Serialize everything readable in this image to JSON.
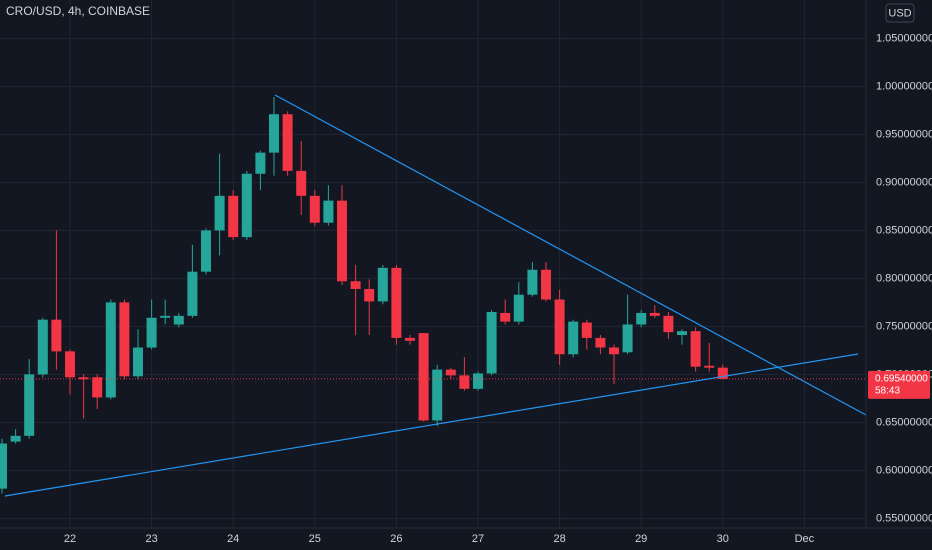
{
  "chart_data": {
    "type": "candlestick",
    "title": "CRO/USD, 4h, COINBASE",
    "currency_button": "USD",
    "up_color": "#26a69a",
    "down_color": "#f23645",
    "grid": true,
    "categories": [
      null,
      null,
      null,
      null,
      null,
      "22",
      null,
      null,
      null,
      null,
      null,
      "23",
      null,
      null,
      null,
      null,
      null,
      "24",
      null,
      null,
      null,
      null,
      null,
      "25",
      null,
      null,
      null,
      null,
      null,
      "26",
      null,
      null,
      null,
      null,
      null,
      "27",
      null,
      null,
      null,
      null,
      null,
      "28",
      null,
      null,
      null,
      null,
      null,
      "29",
      null,
      null,
      null,
      null,
      null,
      "30",
      null,
      null,
      null,
      null,
      null,
      "Dec"
    ],
    "open": [
      0.581,
      0.63,
      0.636,
      0.7,
      0.757,
      0.724,
      0.697,
      0.697,
      0.676,
      0.775,
      0.698,
      0.728,
      0.759,
      0.752,
      0.761,
      0.807,
      0.85,
      0.886,
      0.843,
      0.909,
      0.931,
      0.971,
      0.912,
      0.886,
      0.858,
      0.881,
      0.797,
      0.789,
      0.776,
      0.811,
      0.738,
      0.743,
      0.652,
      0.705,
      0.699,
      0.685,
      0.701,
      0.764,
      0.755,
      0.783,
      0.809,
      0.778,
      0.721,
      0.754,
      0.738,
      0.728,
      0.723,
      0.752,
      0.764,
      0.761,
      0.741,
      0.745,
      0.709,
      0.707,
      null,
      null,
      null,
      null,
      null,
      null
    ],
    "high": [
      0.633,
      0.643,
      0.716,
      0.759,
      0.85,
      0.726,
      0.7,
      0.7,
      0.778,
      0.778,
      0.747,
      0.778,
      0.778,
      0.764,
      0.835,
      0.852,
      0.93,
      0.892,
      0.912,
      0.933,
      0.989,
      0.974,
      0.943,
      0.892,
      0.897,
      0.897,
      0.814,
      0.799,
      0.814,
      0.814,
      0.741,
      0.743,
      0.71,
      0.707,
      0.718,
      0.703,
      0.767,
      0.778,
      0.796,
      0.817,
      0.817,
      0.788,
      0.757,
      0.757,
      0.741,
      0.731,
      0.783,
      0.767,
      0.772,
      0.765,
      0.747,
      0.749,
      0.733,
      0.71,
      null,
      null,
      null,
      null,
      null,
      null
    ],
    "low": [
      0.576,
      0.628,
      0.633,
      0.697,
      0.705,
      0.679,
      0.654,
      0.664,
      0.674,
      0.695,
      0.695,
      0.726,
      0.752,
      0.749,
      0.759,
      0.804,
      0.824,
      0.84,
      0.84,
      0.892,
      0.907,
      0.907,
      0.866,
      0.855,
      0.855,
      0.793,
      0.741,
      0.741,
      0.773,
      0.731,
      0.731,
      0.651,
      0.646,
      0.695,
      0.683,
      0.683,
      0.699,
      0.752,
      0.752,
      0.781,
      0.776,
      0.71,
      0.718,
      0.726,
      0.721,
      0.69,
      0.721,
      0.749,
      0.759,
      0.737,
      0.731,
      0.703,
      0.703,
      0.695,
      null,
      null,
      null,
      null,
      null,
      null
    ],
    "close": [
      0.628,
      0.636,
      0.7,
      0.757,
      0.724,
      0.697,
      0.695,
      0.676,
      0.775,
      0.698,
      0.728,
      0.759,
      0.761,
      0.761,
      0.807,
      0.85,
      0.886,
      0.843,
      0.909,
      0.931,
      0.971,
      0.912,
      0.886,
      0.858,
      0.881,
      0.797,
      0.789,
      0.776,
      0.811,
      0.738,
      0.735,
      0.652,
      0.705,
      0.699,
      0.685,
      0.701,
      0.765,
      0.755,
      0.783,
      0.809,
      0.778,
      0.721,
      0.755,
      0.738,
      0.728,
      0.721,
      0.752,
      0.764,
      0.761,
      0.744,
      0.745,
      0.708,
      0.707,
      0.6954,
      null,
      null,
      null,
      null,
      null,
      null
    ],
    "ylim": [
      0.54,
      1.09
    ],
    "yticks": [
      {
        "value": 0.55,
        "label": "0.55000000"
      },
      {
        "value": 0.6,
        "label": "0.60000000"
      },
      {
        "value": 0.65,
        "label": "0.65000000"
      },
      {
        "value": 0.7,
        "label": "0.70000000"
      },
      {
        "value": 0.75,
        "label": "0.75000000"
      },
      {
        "value": 0.8,
        "label": "0.80000000"
      },
      {
        "value": 0.85,
        "label": "0.85000000"
      },
      {
        "value": 0.9,
        "label": "0.90000000"
      },
      {
        "value": 0.95,
        "label": "0.95000000"
      },
      {
        "value": 1.0,
        "label": "1.00000000"
      },
      {
        "value": 1.05,
        "label": "1.05000000"
      }
    ],
    "last_price": {
      "value": 0.6954,
      "label": "0.69540000"
    },
    "countdown": "58:43"
  }
}
